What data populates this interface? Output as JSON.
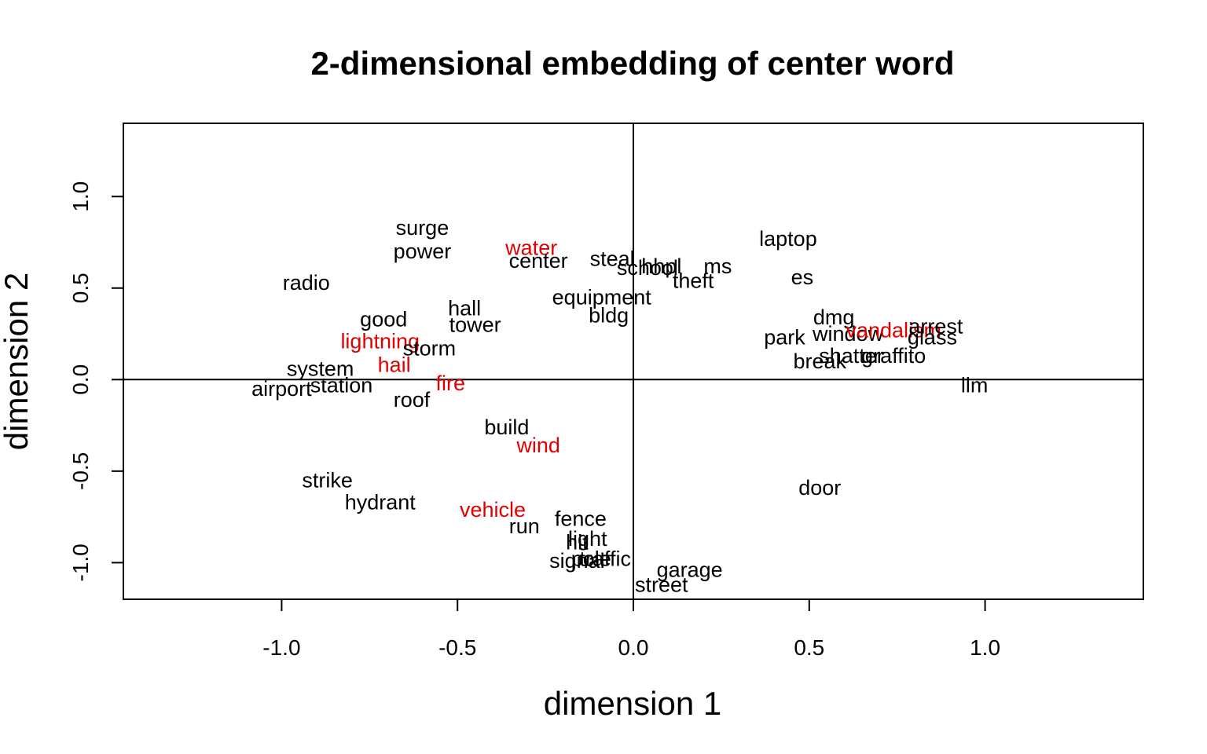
{
  "chart_data": {
    "type": "scatter",
    "title": "2-dimensional embedding of center word",
    "xlabel": "dimension 1",
    "ylabel": "dimension 2",
    "xlim": [
      -1.45,
      1.45
    ],
    "ylim": [
      -1.2,
      1.4
    ],
    "x_ticks": [
      -1.0,
      -0.5,
      0.0,
      0.5,
      1.0
    ],
    "y_ticks": [
      -1.0,
      -0.5,
      0.0,
      0.5,
      1.0
    ],
    "x_tick_labels": [
      "-1.0",
      "-0.5",
      "0.0",
      "0.5",
      "1.0"
    ],
    "y_tick_labels": [
      "-1.0",
      "-0.5",
      "0.0",
      "0.5",
      "1.0"
    ],
    "reference_lines": {
      "x": 0,
      "y": 0
    },
    "colors": {
      "default": "#000000",
      "highlight": "#e00000"
    },
    "points": [
      {
        "label": "surge",
        "x": -0.6,
        "y": 0.83,
        "highlight": false
      },
      {
        "label": "power",
        "x": -0.6,
        "y": 0.7,
        "highlight": false
      },
      {
        "label": "water",
        "x": -0.29,
        "y": 0.72,
        "highlight": true
      },
      {
        "label": "center",
        "x": -0.27,
        "y": 0.65,
        "highlight": false
      },
      {
        "label": "steal",
        "x": -0.06,
        "y": 0.66,
        "highlight": false
      },
      {
        "label": "school",
        "x": 0.04,
        "y": 0.61,
        "highlight": false
      },
      {
        "label": "hhpl",
        "x": 0.08,
        "y": 0.62,
        "highlight": false
      },
      {
        "label": "ms",
        "x": 0.24,
        "y": 0.62,
        "highlight": false
      },
      {
        "label": "theft",
        "x": 0.17,
        "y": 0.54,
        "highlight": false
      },
      {
        "label": "laptop",
        "x": 0.44,
        "y": 0.77,
        "highlight": false
      },
      {
        "label": "es",
        "x": 0.48,
        "y": 0.56,
        "highlight": false
      },
      {
        "label": "radio",
        "x": -0.93,
        "y": 0.53,
        "highlight": false
      },
      {
        "label": "equipment",
        "x": -0.09,
        "y": 0.45,
        "highlight": false
      },
      {
        "label": "bldg",
        "x": -0.07,
        "y": 0.35,
        "highlight": false
      },
      {
        "label": "hall",
        "x": -0.48,
        "y": 0.39,
        "highlight": false
      },
      {
        "label": "tower",
        "x": -0.45,
        "y": 0.3,
        "highlight": false
      },
      {
        "label": "good",
        "x": -0.71,
        "y": 0.33,
        "highlight": false
      },
      {
        "label": "lightning",
        "x": -0.72,
        "y": 0.21,
        "highlight": true
      },
      {
        "label": "storm",
        "x": -0.58,
        "y": 0.17,
        "highlight": false
      },
      {
        "label": "hail",
        "x": -0.68,
        "y": 0.08,
        "highlight": true
      },
      {
        "label": "system",
        "x": -0.89,
        "y": 0.06,
        "highlight": false
      },
      {
        "label": "fire",
        "x": -0.52,
        "y": -0.02,
        "highlight": true
      },
      {
        "label": "airport",
        "x": -1.0,
        "y": -0.05,
        "highlight": false
      },
      {
        "label": "station",
        "x": -0.83,
        "y": -0.03,
        "highlight": false
      },
      {
        "label": "roof",
        "x": -0.63,
        "y": -0.11,
        "highlight": false
      },
      {
        "label": "dmg",
        "x": 0.57,
        "y": 0.34,
        "highlight": false
      },
      {
        "label": "park",
        "x": 0.43,
        "y": 0.23,
        "highlight": false
      },
      {
        "label": "window",
        "x": 0.61,
        "y": 0.25,
        "highlight": false
      },
      {
        "label": "vandalism",
        "x": 0.74,
        "y": 0.27,
        "highlight": true
      },
      {
        "label": "arrest",
        "x": 0.86,
        "y": 0.29,
        "highlight": false
      },
      {
        "label": "glass",
        "x": 0.85,
        "y": 0.23,
        "highlight": false
      },
      {
        "label": "shatter",
        "x": 0.62,
        "y": 0.13,
        "highlight": false
      },
      {
        "label": "graffito",
        "x": 0.74,
        "y": 0.13,
        "highlight": false
      },
      {
        "label": "break",
        "x": 0.53,
        "y": 0.1,
        "highlight": false
      },
      {
        "label": "llm",
        "x": 0.97,
        "y": -0.03,
        "highlight": false
      },
      {
        "label": "build",
        "x": -0.36,
        "y": -0.26,
        "highlight": false
      },
      {
        "label": "wind",
        "x": -0.27,
        "y": -0.36,
        "highlight": true
      },
      {
        "label": "door",
        "x": 0.53,
        "y": -0.59,
        "highlight": false
      },
      {
        "label": "strike",
        "x": -0.87,
        "y": -0.55,
        "highlight": false
      },
      {
        "label": "hydrant",
        "x": -0.72,
        "y": -0.67,
        "highlight": false
      },
      {
        "label": "vehicle",
        "x": -0.4,
        "y": -0.71,
        "highlight": true
      },
      {
        "label": "run",
        "x": -0.31,
        "y": -0.8,
        "highlight": false
      },
      {
        "label": "fence",
        "x": -0.15,
        "y": -0.76,
        "highlight": false
      },
      {
        "label": "light",
        "x": -0.13,
        "y": -0.87,
        "highlight": false
      },
      {
        "label": "hit",
        "x": -0.16,
        "y": -0.89,
        "highlight": false
      },
      {
        "label": "traffic",
        "x": -0.08,
        "y": -0.98,
        "highlight": false
      },
      {
        "label": "signal",
        "x": -0.16,
        "y": -0.99,
        "highlight": false
      },
      {
        "label": "pole",
        "x": -0.12,
        "y": -0.98,
        "highlight": false
      },
      {
        "label": "garage",
        "x": 0.16,
        "y": -1.04,
        "highlight": false
      },
      {
        "label": "street",
        "x": 0.08,
        "y": -1.12,
        "highlight": false
      }
    ]
  }
}
